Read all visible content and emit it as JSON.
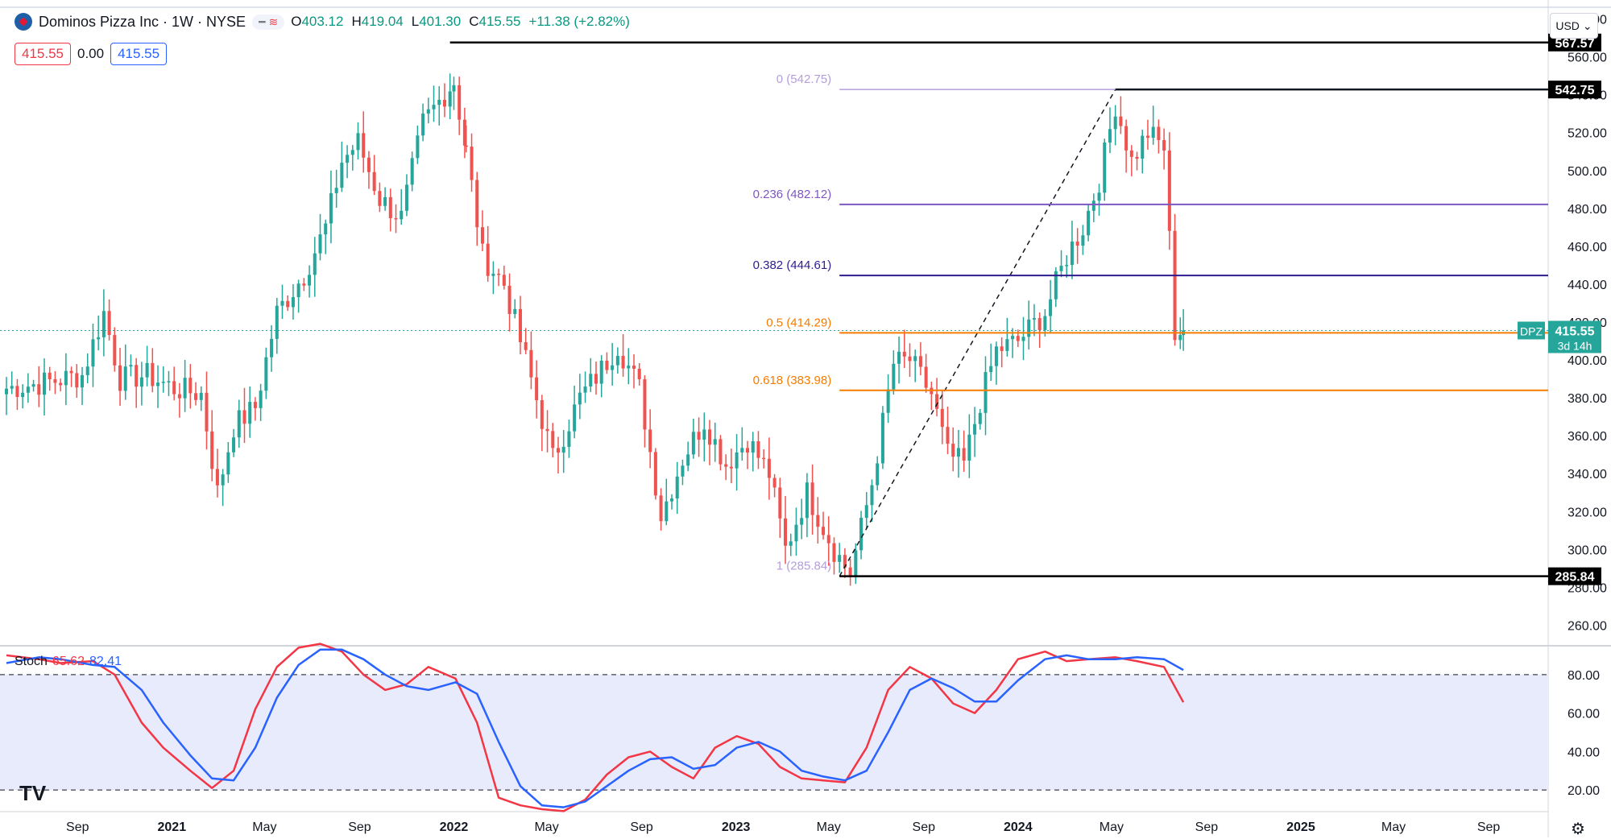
{
  "header": {
    "symbol_title": "Dominos Pizza Inc · 1W · NYSE",
    "open_label": "O",
    "open": "403.12",
    "high_label": "H",
    "high": "419.04",
    "low_label": "L",
    "low": "401.30",
    "close_label": "C",
    "close": "415.55",
    "change": "+11.38 (+2.82%)",
    "bid": "415.55",
    "spread": "0.00",
    "ask": "415.55"
  },
  "currency_button": "USD",
  "colors": {
    "up": "#26a69a",
    "down": "#ef5350",
    "stoch_k": "#f23645",
    "stoch_d": "#2962ff",
    "fib_0": "#b39ddb",
    "fib_236": "#7e57c2",
    "fib_382": "#311b92",
    "fib_05": "#f57c00",
    "fib_618": "#f57c00"
  },
  "indicator": {
    "name": "Stoch",
    "k_value": "65.62",
    "d_value": "82.41"
  },
  "chart_data": [
    {
      "type": "candlestick",
      "title": "Dominos Pizza Inc · 1W · NYSE",
      "ylim": [
        250,
        590
      ],
      "y_ticks": [
        260,
        280,
        300,
        320,
        340,
        360,
        380,
        400,
        420,
        440,
        460,
        480,
        500,
        520,
        540,
        560,
        580
      ],
      "x_tick_labels": [
        "Sep",
        "2021",
        "May",
        "Sep",
        "2022",
        "May",
        "Sep",
        "2023",
        "May",
        "Sep",
        "2024",
        "May",
        "Sep",
        "2025",
        "May",
        "Sep"
      ],
      "x_tick_dates": [
        "2020-09-01",
        "2021-01-01",
        "2021-05-01",
        "2021-09-01",
        "2022-01-01",
        "2022-05-01",
        "2022-09-01",
        "2023-01-01",
        "2023-05-01",
        "2023-09-01",
        "2024-01-01",
        "2024-05-01",
        "2024-09-01",
        "2025-01-01",
        "2025-05-01",
        "2025-09-01"
      ],
      "x_range": [
        "2020-06-01",
        "2025-11-15"
      ],
      "series": [
        {
          "name": "DPZ",
          "weekly_close_path": [
            [
              "2020-06-01",
              385
            ],
            [
              "2020-07-20",
              388
            ],
            [
              "2020-09-07",
              392
            ],
            [
              "2020-10-05",
              425
            ],
            [
              "2020-10-26",
              390
            ],
            [
              "2020-11-30",
              392
            ],
            [
              "2021-01-04",
              385
            ],
            [
              "2021-02-08",
              382
            ],
            [
              "2021-03-01",
              330
            ],
            [
              "2021-03-22",
              365
            ],
            [
              "2021-04-19",
              375
            ],
            [
              "2021-05-17",
              425
            ],
            [
              "2021-06-21",
              445
            ],
            [
              "2021-07-19",
              470
            ],
            [
              "2021-08-09",
              505
            ],
            [
              "2021-08-30",
              515
            ],
            [
              "2021-09-27",
              485
            ],
            [
              "2021-10-25",
              475
            ],
            [
              "2021-11-22",
              525
            ],
            [
              "2022-01-01",
              547
            ],
            [
              "2022-01-17",
              510
            ],
            [
              "2022-02-07",
              455
            ],
            [
              "2022-03-07",
              440
            ],
            [
              "2022-04-04",
              400
            ],
            [
              "2022-05-09",
              348
            ],
            [
              "2022-06-13",
              380
            ],
            [
              "2022-07-11",
              395
            ],
            [
              "2022-08-01",
              408
            ],
            [
              "2022-08-29",
              385
            ],
            [
              "2022-09-26",
              318
            ],
            [
              "2022-10-24",
              348
            ],
            [
              "2022-11-21",
              368
            ],
            [
              "2022-12-19",
              345
            ],
            [
              "2023-01-16",
              358
            ],
            [
              "2023-02-13",
              340
            ],
            [
              "2023-03-06",
              300
            ],
            [
              "2023-04-03",
              330
            ],
            [
              "2023-05-08",
              300
            ],
            [
              "2023-05-29",
              287
            ],
            [
              "2023-06-26",
              335
            ],
            [
              "2023-07-24",
              398
            ],
            [
              "2023-08-14",
              400
            ],
            [
              "2023-09-11",
              382
            ],
            [
              "2023-10-02",
              350
            ],
            [
              "2023-10-23",
              345
            ],
            [
              "2023-11-13",
              378
            ],
            [
              "2023-12-04",
              405
            ],
            [
              "2024-01-01",
              410
            ],
            [
              "2024-02-05",
              425
            ],
            [
              "2024-03-04",
              455
            ],
            [
              "2024-03-25",
              470
            ],
            [
              "2024-04-15",
              495
            ],
            [
              "2024-05-06",
              535
            ],
            [
              "2024-05-27",
              505
            ],
            [
              "2024-06-17",
              520
            ],
            [
              "2024-07-08",
              512
            ],
            [
              "2024-07-22",
              415
            ],
            [
              "2024-08-02",
              415.55
            ]
          ]
        }
      ],
      "price_labels": [
        {
          "text": "567.57",
          "value": 567.57
        },
        {
          "text": "542.75",
          "value": 542.75
        },
        {
          "text": "285.84",
          "value": 285.84
        }
      ],
      "current_price": {
        "symbol": "DPZ",
        "value": 415.55,
        "text": "415.55",
        "countdown": "3d 14h"
      },
      "annotations": {
        "hline_top": {
          "value": 567.57,
          "from": "2021-12-27"
        },
        "fib_retracement": {
          "from": {
            "date": "2023-05-15",
            "value": 285.84
          },
          "to": {
            "date": "2024-05-06",
            "value": 542.75
          },
          "levels": [
            {
              "label": "0 (542.75)",
              "ratio": 0,
              "value": 542.75
            },
            {
              "label": "0.236 (482.12)",
              "ratio": 0.236,
              "value": 482.12
            },
            {
              "label": "0.382 (444.61)",
              "ratio": 0.382,
              "value": 444.61
            },
            {
              "label": "0.5 (414.29)",
              "ratio": 0.5,
              "value": 414.29
            },
            {
              "label": "0.618 (383.98)",
              "ratio": 0.618,
              "value": 383.98
            },
            {
              "label": "1 (285.84)",
              "ratio": 1,
              "value": 285.84
            }
          ]
        }
      }
    },
    {
      "type": "line",
      "title": "Stoch",
      "ylim": [
        10,
        95
      ],
      "y_ticks": [
        20,
        40,
        60,
        80
      ],
      "bands": [
        20,
        80
      ],
      "series": [
        {
          "name": "65.62",
          "points": [
            [
              "2020-06-01",
              90
            ],
            [
              "2020-07-13",
              88
            ],
            [
              "2020-08-10",
              86
            ],
            [
              "2020-09-21",
              87
            ],
            [
              "2020-10-19",
              80
            ],
            [
              "2020-11-23",
              55
            ],
            [
              "2020-12-21",
              42
            ],
            [
              "2021-01-25",
              30
            ],
            [
              "2021-02-22",
              21
            ],
            [
              "2021-03-22",
              30
            ],
            [
              "2021-04-19",
              62
            ],
            [
              "2021-05-17",
              84
            ],
            [
              "2021-06-14",
              94
            ],
            [
              "2021-07-12",
              96
            ],
            [
              "2021-08-09",
              92
            ],
            [
              "2021-09-06",
              80
            ],
            [
              "2021-10-04",
              72
            ],
            [
              "2021-11-01",
              75
            ],
            [
              "2021-11-29",
              84
            ],
            [
              "2022-01-03",
              78
            ],
            [
              "2022-01-31",
              55
            ],
            [
              "2022-02-28",
              16
            ],
            [
              "2022-03-28",
              12
            ],
            [
              "2022-04-25",
              10
            ],
            [
              "2022-05-23",
              9
            ],
            [
              "2022-06-20",
              15
            ],
            [
              "2022-07-18",
              28
            ],
            [
              "2022-08-15",
              37
            ],
            [
              "2022-09-12",
              40
            ],
            [
              "2022-10-10",
              32
            ],
            [
              "2022-11-07",
              26
            ],
            [
              "2022-12-05",
              42
            ],
            [
              "2023-01-02",
              48
            ],
            [
              "2023-01-30",
              44
            ],
            [
              "2023-02-27",
              32
            ],
            [
              "2023-03-27",
              26
            ],
            [
              "2023-04-24",
              25
            ],
            [
              "2023-05-22",
              24
            ],
            [
              "2023-06-19",
              42
            ],
            [
              "2023-07-17",
              72
            ],
            [
              "2023-08-14",
              84
            ],
            [
              "2023-09-11",
              78
            ],
            [
              "2023-10-09",
              65
            ],
            [
              "2023-11-06",
              60
            ],
            [
              "2023-12-04",
              72
            ],
            [
              "2024-01-01",
              88
            ],
            [
              "2024-02-05",
              92
            ],
            [
              "2024-03-04",
              87
            ],
            [
              "2024-04-01",
              88
            ],
            [
              "2024-05-06",
              89
            ],
            [
              "2024-06-03",
              87
            ],
            [
              "2024-07-08",
              84
            ],
            [
              "2024-08-02",
              65.62
            ]
          ]
        },
        {
          "name": "82.41",
          "points": [
            [
              "2020-06-01",
              86
            ],
            [
              "2020-07-13",
              89
            ],
            [
              "2020-08-10",
              88
            ],
            [
              "2020-09-21",
              85
            ],
            [
              "2020-10-19",
              84
            ],
            [
              "2020-11-23",
              72
            ],
            [
              "2020-12-21",
              55
            ],
            [
              "2021-01-25",
              38
            ],
            [
              "2021-02-22",
              26
            ],
            [
              "2021-03-22",
              25
            ],
            [
              "2021-04-19",
              42
            ],
            [
              "2021-05-17",
              68
            ],
            [
              "2021-06-14",
              85
            ],
            [
              "2021-07-12",
              93
            ],
            [
              "2021-08-09",
              93
            ],
            [
              "2021-09-06",
              88
            ],
            [
              "2021-10-04",
              80
            ],
            [
              "2021-11-01",
              74
            ],
            [
              "2021-11-29",
              72
            ],
            [
              "2022-01-03",
              76
            ],
            [
              "2022-01-31",
              70
            ],
            [
              "2022-02-28",
              45
            ],
            [
              "2022-03-28",
              22
            ],
            [
              "2022-04-25",
              12
            ],
            [
              "2022-05-23",
              11
            ],
            [
              "2022-06-20",
              14
            ],
            [
              "2022-07-18",
              22
            ],
            [
              "2022-08-15",
              30
            ],
            [
              "2022-09-12",
              36
            ],
            [
              "2022-10-10",
              37
            ],
            [
              "2022-11-07",
              31
            ],
            [
              "2022-12-05",
              33
            ],
            [
              "2023-01-02",
              42
            ],
            [
              "2023-01-30",
              45
            ],
            [
              "2023-02-27",
              40
            ],
            [
              "2023-03-27",
              30
            ],
            [
              "2023-04-24",
              27
            ],
            [
              "2023-05-22",
              25
            ],
            [
              "2023-06-19",
              30
            ],
            [
              "2023-07-17",
              50
            ],
            [
              "2023-08-14",
              72
            ],
            [
              "2023-09-11",
              78
            ],
            [
              "2023-10-09",
              73
            ],
            [
              "2023-11-06",
              66
            ],
            [
              "2023-12-04",
              66
            ],
            [
              "2024-01-01",
              77
            ],
            [
              "2024-02-05",
              88
            ],
            [
              "2024-03-04",
              90
            ],
            [
              "2024-04-01",
              88
            ],
            [
              "2024-05-06",
              88
            ],
            [
              "2024-06-03",
              89
            ],
            [
              "2024-07-08",
              88
            ],
            [
              "2024-08-02",
              82.41
            ]
          ]
        }
      ]
    }
  ]
}
